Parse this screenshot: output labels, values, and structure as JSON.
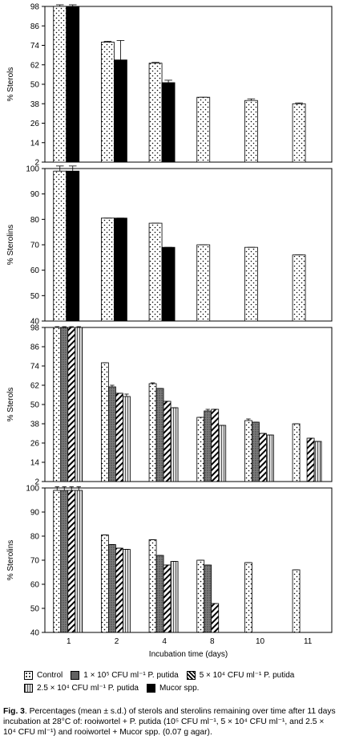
{
  "chart_data": [
    {
      "type": "bar",
      "ylabel": "% Sterols",
      "ylim": [
        2,
        98
      ],
      "yticks": [
        2,
        14,
        26,
        38,
        50,
        62,
        74,
        86,
        98
      ],
      "categories": [
        "1",
        "2",
        "4",
        "8",
        "10",
        "11"
      ],
      "series": [
        {
          "key": "control",
          "values": [
            98,
            76,
            63,
            42,
            40,
            38
          ],
          "errors": [
            1,
            0.5,
            0.5,
            0,
            1,
            0.5
          ]
        },
        {
          "key": "mucor",
          "values": [
            98,
            65,
            51,
            null,
            null,
            null
          ],
          "errors": [
            1,
            12,
            1.5,
            null,
            null,
            null
          ]
        }
      ]
    },
    {
      "type": "bar",
      "ylabel": "% Sterolins",
      "ylim": [
        40,
        100
      ],
      "yticks": [
        40,
        50,
        60,
        70,
        80,
        90,
        100
      ],
      "categories": [
        "1",
        "2",
        "4",
        "8",
        "10",
        "11"
      ],
      "series": [
        {
          "key": "control",
          "values": [
            99,
            80.5,
            78.5,
            70,
            69,
            66
          ],
          "errors": [
            2,
            0,
            0,
            0,
            0,
            0
          ]
        },
        {
          "key": "mucor",
          "values": [
            99,
            80.5,
            69,
            null,
            null,
            null
          ],
          "errors": [
            2,
            0,
            0,
            null,
            null,
            null
          ]
        }
      ]
    },
    {
      "type": "bar",
      "ylabel": "% Sterols",
      "ylim": [
        2,
        98
      ],
      "yticks": [
        2,
        14,
        26,
        38,
        50,
        62,
        74,
        86,
        98
      ],
      "categories": [
        "1",
        "2",
        "4",
        "8",
        "10",
        "11"
      ],
      "series": [
        {
          "key": "control",
          "values": [
            98,
            76,
            63,
            42,
            40,
            38
          ],
          "errors": [
            0.5,
            0,
            0.5,
            0,
            1,
            0
          ]
        },
        {
          "key": "c1e5",
          "values": [
            98,
            61,
            60,
            46,
            39,
            null
          ],
          "errors": [
            0.5,
            1,
            0,
            1,
            0,
            null
          ]
        },
        {
          "key": "c5e4",
          "values": [
            98,
            57,
            52,
            47,
            32,
            29
          ],
          "errors": [
            0.5,
            0,
            0,
            0,
            0,
            0
          ]
        },
        {
          "key": "c25e4",
          "values": [
            98,
            55,
            48,
            37,
            31,
            27
          ],
          "errors": [
            0.5,
            1.5,
            0,
            0,
            0,
            0
          ]
        }
      ]
    },
    {
      "type": "bar",
      "ylabel": "% Sterolins",
      "xlabel": "Incubation time (days)",
      "ylim": [
        40,
        100
      ],
      "yticks": [
        40,
        50,
        60,
        70,
        80,
        90,
        100
      ],
      "categories": [
        "1",
        "2",
        "4",
        "8",
        "10",
        "11"
      ],
      "series": [
        {
          "key": "control",
          "values": [
            99,
            80.5,
            78.5,
            70,
            69,
            66
          ],
          "errors": [
            1.5,
            0,
            0,
            0,
            0,
            0
          ]
        },
        {
          "key": "c1e5",
          "values": [
            99,
            76.5,
            72,
            68,
            null,
            null
          ],
          "errors": [
            1.5,
            0,
            0,
            0,
            null,
            null
          ]
        },
        {
          "key": "c5e4",
          "values": [
            99,
            75,
            68,
            52,
            null,
            null
          ],
          "errors": [
            1.5,
            0,
            0,
            0,
            null,
            null
          ]
        },
        {
          "key": "c25e4",
          "values": [
            99,
            74.5,
            69.5,
            null,
            null,
            null
          ],
          "errors": [
            1.5,
            0,
            0,
            null,
            null,
            null
          ]
        }
      ]
    }
  ],
  "legend": {
    "control": "Control",
    "c1e5": "1 × 10⁵ CFU ml⁻¹ P. putida",
    "c5e4": "5 × 10⁴ CFU ml⁻¹ P. putida",
    "c25e4": "2.5 × 10⁴ CFU ml⁻¹ P. putida",
    "mucor": "Mucor spp."
  },
  "caption": {
    "label": "Fig. 3",
    "text": ". Percentages (mean ± s.d.) of sterols and sterolins remaining over time after 11 days incubation at 28°C of: rooiwortel + P. putida (10⁵ CFU ml⁻¹, 5 × 10⁴ CFU ml⁻¹, and 2.5 × 10⁴ CFU ml⁻¹) and rooiwortel + Mucor spp. (0.07 g agar)."
  }
}
